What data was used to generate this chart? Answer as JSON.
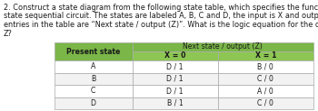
{
  "title_lines": [
    "2. Construct a state diagram from the following state table, which specifies the function of a four-",
    "state sequential circuit. The states are labeled A, B, C and D, the input is X and output is Z. The",
    "entries in the table are “Next state / output (Z)”. What is the logic equation for the output variable",
    "Z?"
  ],
  "header_main": "Next state / output (Z)",
  "header_col0": "Present state",
  "header_col1": "X = 0",
  "header_col2": "X = 1",
  "rows": [
    [
      "A",
      "D / 1",
      "B / 0"
    ],
    [
      "B",
      "D / 1",
      "C / 0"
    ],
    [
      "C",
      "D / 1",
      "A / 0"
    ],
    [
      "D",
      "B / 1",
      "C / 0"
    ]
  ],
  "header_bg_dark": "#7ab648",
  "header_bg_light": "#8dc653",
  "row_bg_white": "#ffffff",
  "row_bg_light": "#f2f2f2",
  "border_color": "#aaaaaa",
  "text_color": "#1a1a1a",
  "font_size_title": 5.9,
  "font_size_table": 5.6
}
